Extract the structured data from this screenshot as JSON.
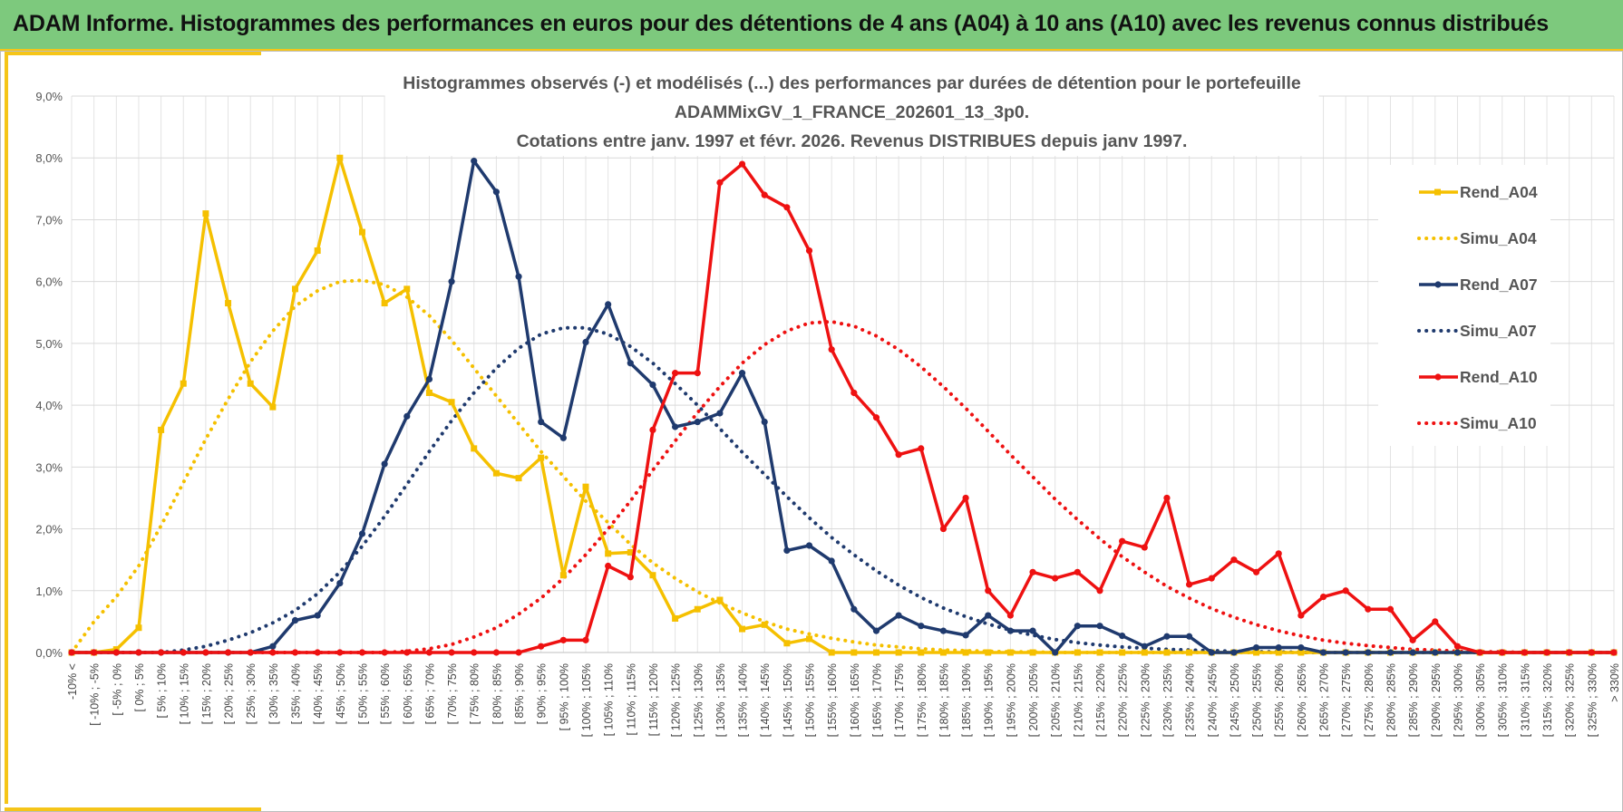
{
  "header": {
    "title": "ADAM Informe. Histogrammes des performances en euros pour des détentions de 4 ans (A04) à 10 ans (A10) avec les revenus connus distribués"
  },
  "chart_data": {
    "type": "line",
    "title": [
      "Histogrammes observés (-) et modélisés (...) des performances par durées de détention pour le portefeuille",
      "ADAMMixGV_1_FRANCE_202601_13_3p0.",
      "Cotations entre janv. 1997 et févr. 2026. Revenus DISTRIBUES depuis janv 1997."
    ],
    "xlabel": "",
    "ylabel": "",
    "ylim": [
      0,
      9
    ],
    "yticks": [
      "0,0%",
      "1,0%",
      "2,0%",
      "3,0%",
      "4,0%",
      "5,0%",
      "6,0%",
      "7,0%",
      "8,0%",
      "9,0%"
    ],
    "grid": true,
    "legend_position": "right",
    "categories": [
      "-10% <",
      "[ -10% ; -5%",
      "[ -5% ; 0%",
      "[ 0% ; 5%",
      "[ 5% ; 10%",
      "[ 10% ; 15%",
      "[ 15% ; 20%",
      "[ 20% ; 25%",
      "[ 25% ; 30%",
      "[ 30% ; 35%",
      "[ 35% ; 40%",
      "[ 40% ; 45%",
      "[ 45% ; 50%",
      "[ 50% ; 55%",
      "[ 55% ; 60%",
      "[ 60% ; 65%",
      "[ 65% ; 70%",
      "[ 70% ; 75%",
      "[ 75% ; 80%",
      "[ 80% ; 85%",
      "[ 85% ; 90%",
      "[ 90% ; 95%",
      "[ 95% ; 100%",
      "[ 100% ; 105%",
      "[ 105% ; 110%",
      "[ 110% ; 115%",
      "[ 115% ; 120%",
      "[ 120% ; 125%",
      "[ 125% ; 130%",
      "[ 130% ; 135%",
      "[ 135% ; 140%",
      "[ 140% ; 145%",
      "[ 145% ; 150%",
      "[ 150% ; 155%",
      "[ 155% ; 160%",
      "[ 160% ; 165%",
      "[ 165% ; 170%",
      "[ 170% ; 175%",
      "[ 175% ; 180%",
      "[ 180% ; 185%",
      "[ 185% ; 190%",
      "[ 190% ; 195%",
      "[ 195% ; 200%",
      "[ 200% ; 205%",
      "[ 205% ; 210%",
      "[ 210% ; 215%",
      "[ 215% ; 220%",
      "[ 220% ; 225%",
      "[ 225% ; 230%",
      "[ 230% ; 235%",
      "[ 235% ; 240%",
      "[ 240% ; 245%",
      "[ 245% ; 250%",
      "[ 250% ; 255%",
      "[ 255% ; 260%",
      "[ 260% ; 265%",
      "[ 265% ; 270%",
      "[ 270% ; 275%",
      "[ 275% ; 280%",
      "[ 280% ; 285%",
      "[ 285% ; 290%",
      "[ 290% ; 295%",
      "[ 295% ; 300%",
      "[ 300% ; 305%",
      "[ 305% ; 310%",
      "[ 310% ; 315%",
      "[ 315% ; 320%",
      "[ 320% ; 325%",
      "[ 325% ; 330%",
      "> 330%"
    ],
    "series": [
      {
        "name": "Rend_A04",
        "style": "solid",
        "marker": "square",
        "color": "#f5c000",
        "values": [
          0,
          0,
          0.05,
          0.4,
          3.6,
          4.35,
          7.1,
          5.65,
          4.35,
          3.97,
          5.88,
          6.5,
          8.0,
          6.8,
          5.65,
          5.88,
          4.2,
          4.05,
          3.3,
          2.9,
          2.82,
          3.15,
          1.25,
          2.68,
          1.6,
          1.62,
          1.25,
          0.55,
          0.7,
          0.85,
          0.38,
          0.45,
          0.15,
          0.22,
          0,
          0,
          0,
          0,
          0,
          0,
          0,
          0,
          0,
          0,
          0,
          0,
          0,
          0,
          0,
          0,
          0,
          0,
          0,
          0,
          0,
          0,
          0,
          0,
          0,
          0,
          0,
          0,
          0,
          0,
          0,
          0,
          0,
          0,
          0,
          0
        ]
      },
      {
        "name": "Simu_A04",
        "style": "dotted",
        "marker": "none",
        "color": "#f5c000",
        "values": [
          0,
          0.5,
          0.9,
          1.4,
          2.05,
          2.75,
          3.45,
          4.1,
          4.7,
          5.2,
          5.6,
          5.85,
          6.0,
          6.02,
          5.95,
          5.75,
          5.45,
          5.05,
          4.6,
          4.15,
          3.7,
          3.25,
          2.85,
          2.45,
          2.1,
          1.75,
          1.45,
          1.2,
          0.98,
          0.8,
          0.64,
          0.5,
          0.38,
          0.3,
          0.23,
          0.17,
          0.12,
          0.09,
          0.06,
          0.04,
          0.03,
          0.02,
          0.01,
          0.01,
          0,
          0,
          0,
          0,
          0,
          0,
          0,
          0,
          0,
          0,
          0,
          0,
          0,
          0,
          0,
          0,
          0,
          0,
          0,
          0,
          0,
          0,
          0,
          0,
          0,
          0
        ]
      },
      {
        "name": "Rend_A07",
        "style": "solid",
        "marker": "circle",
        "color": "#1f3a6e",
        "values": [
          0,
          0,
          0,
          0,
          0,
          0,
          0,
          0,
          0,
          0.1,
          0.52,
          0.6,
          1.12,
          1.92,
          3.05,
          3.82,
          4.42,
          6.0,
          7.95,
          7.45,
          6.08,
          3.73,
          3.47,
          5.02,
          5.63,
          4.68,
          4.33,
          3.65,
          3.73,
          3.87,
          4.52,
          3.73,
          1.65,
          1.73,
          1.48,
          0.7,
          0.35,
          0.6,
          0.43,
          0.35,
          0.28,
          0.6,
          0.35,
          0.35,
          0,
          0.43,
          0.43,
          0.27,
          0.1,
          0.26,
          0.26,
          0,
          0,
          0.08,
          0.08,
          0.08,
          0,
          0,
          0,
          0,
          0,
          0,
          0,
          0,
          0,
          0,
          0,
          0,
          0,
          0
        ]
      },
      {
        "name": "Simu_A07",
        "style": "dotted",
        "marker": "none",
        "color": "#1f3a6e",
        "values": [
          0,
          0,
          0,
          0,
          0,
          0.04,
          0.1,
          0.2,
          0.32,
          0.48,
          0.68,
          0.95,
          1.3,
          1.72,
          2.2,
          2.72,
          3.25,
          3.75,
          4.2,
          4.6,
          4.92,
          5.15,
          5.25,
          5.25,
          5.15,
          4.95,
          4.68,
          4.35,
          4.0,
          3.62,
          3.24,
          2.88,
          2.52,
          2.18,
          1.86,
          1.58,
          1.32,
          1.09,
          0.89,
          0.72,
          0.58,
          0.46,
          0.36,
          0.28,
          0.21,
          0.16,
          0.12,
          0.09,
          0.07,
          0.05,
          0.04,
          0.03,
          0.02,
          0.01,
          0.01,
          0,
          0,
          0,
          0,
          0,
          0,
          0,
          0,
          0,
          0,
          0,
          0,
          0,
          0,
          0
        ]
      },
      {
        "name": "Rend_A10",
        "style": "solid",
        "marker": "circle",
        "color": "#ee1111",
        "values": [
          0,
          0,
          0,
          0,
          0,
          0,
          0,
          0,
          0,
          0,
          0,
          0,
          0,
          0,
          0,
          0,
          0,
          0,
          0,
          0,
          0,
          0.1,
          0.2,
          0.2,
          1.4,
          1.22,
          3.6,
          4.52,
          4.52,
          7.6,
          7.9,
          7.4,
          7.2,
          6.5,
          4.9,
          4.2,
          3.8,
          3.2,
          3.3,
          2.0,
          2.5,
          1.0,
          0.6,
          1.3,
          1.2,
          1.3,
          1.0,
          1.8,
          1.7,
          2.5,
          1.1,
          1.2,
          1.5,
          1.3,
          1.6,
          0.6,
          0.9,
          1.0,
          0.7,
          0.7,
          0.2,
          0.5,
          0.1,
          0,
          0,
          0,
          0,
          0,
          0,
          0
        ]
      },
      {
        "name": "Simu_A10",
        "style": "dotted",
        "marker": "none",
        "color": "#ee1111",
        "values": [
          0,
          0,
          0,
          0,
          0,
          0,
          0,
          0,
          0,
          0,
          0,
          0,
          0,
          0,
          0,
          0.02,
          0.06,
          0.13,
          0.25,
          0.4,
          0.62,
          0.88,
          1.2,
          1.58,
          2.0,
          2.45,
          2.95,
          3.42,
          3.88,
          4.3,
          4.68,
          4.98,
          5.2,
          5.33,
          5.35,
          5.28,
          5.12,
          4.9,
          4.62,
          4.3,
          3.95,
          3.58,
          3.2,
          2.84,
          2.48,
          2.15,
          1.84,
          1.55,
          1.3,
          1.07,
          0.88,
          0.71,
          0.57,
          0.45,
          0.35,
          0.27,
          0.2,
          0.15,
          0.11,
          0.08,
          0.05,
          0.04,
          0.02,
          0.01,
          0.01,
          0,
          0,
          0,
          0,
          0
        ]
      }
    ]
  }
}
